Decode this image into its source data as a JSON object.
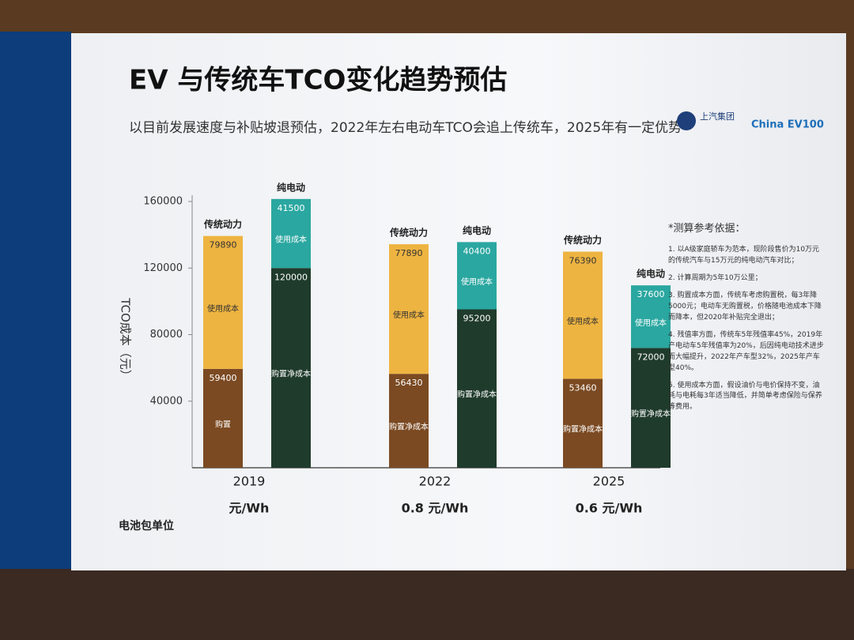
{
  "chart_data": {
    "type": "grouped-stacked-bar",
    "title": "EV 与传统车TCO变化趋势预估",
    "subtitle": "以目前发展速度与补贴坡退预估，2022年左右电动车TCO会追上传统车，2025年有一定优势",
    "logos": [
      "上汽集团",
      "China EV100"
    ],
    "y_label": "TCO成本（元）",
    "categories": [
      "2019",
      "2022",
      "2025"
    ],
    "ylim": [
      0,
      160000
    ],
    "yticks": [
      40000,
      80000,
      120000,
      160000
    ],
    "bars": [
      {
        "name": "传统动力",
        "segments": [
          {
            "labels": [
              "购置",
              "购置净成本",
              "购置净成本"
            ],
            "color": "#7b4a22",
            "values": [
              59400,
              56430,
              53460
            ]
          },
          {
            "labels": [
              "使用成本",
              "使用成本",
              "使用成本"
            ],
            "color": "#eeb441",
            "values": [
              79890,
              77890,
              76390
            ]
          }
        ]
      },
      {
        "name": "纯电动",
        "segments": [
          {
            "labels": [
              "购置净成本",
              "购置净成本",
              "购置净成本"
            ],
            "color": "#1f3b2c",
            "values": [
              120000,
              95200,
              72000
            ]
          },
          {
            "labels": [
              "使用成本",
              "使用成本",
              "使用成本"
            ],
            "color": "#2aa7a0",
            "values": [
              41500,
              40400,
              37600
            ]
          }
        ]
      }
    ],
    "battery_label": "电池包单位",
    "battery_costs": [
      "元/Wh",
      "0.8 元/Wh",
      "0.6 元/Wh"
    ],
    "notes_title": "*测算参考依据：",
    "notes": [
      "1. 以A级家庭轿车为范本，现阶段售价为10万元的传统汽车与15万元的纯电动汽车对比；",
      "2. 计算周期为5年10万公里；",
      "3. 购置成本方面，传统车考虑购置税，每3年降5000元；电动车无购置税，价格随电池成本下降而降本，但2020年补贴完全退出；",
      "4. 残值率方面，传统车5年残值率45%，2019年产电动车5年残值率为20%，后因纯电动技术进步而大幅提升，2022年产车型32%，2025年产车型40%。",
      "5. 使用成本方面，假设油价与电价保持不变，油耗与电耗每3年适当降低，并简单考虑保险与保养等费用。"
    ]
  }
}
